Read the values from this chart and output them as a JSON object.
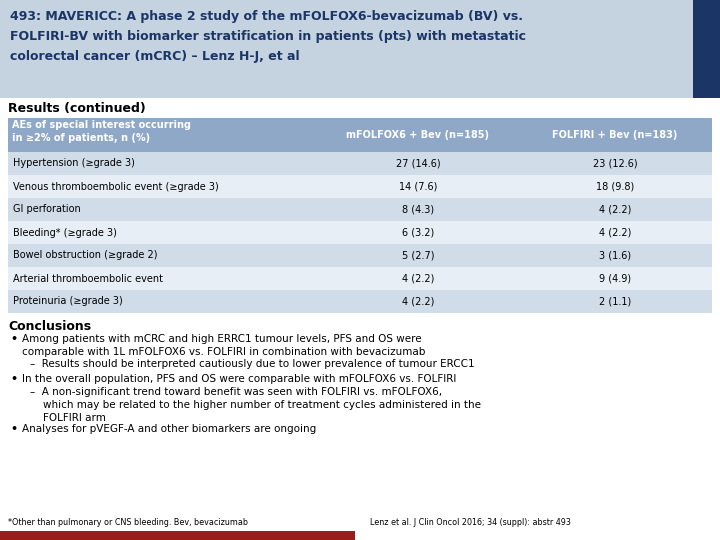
{
  "title_lines": [
    "493: MAVERICC: A phase 2 study of the mFOLFOX6-bevacizumab (BV) vs.",
    "FOLFIRI-BV with biomarker stratification in patients (pts) with metastatic",
    "colorectal cancer (mCRC) – Lenz H-J, et al"
  ],
  "title_bg": "#c5d3e0",
  "title_color": "#1a3566",
  "sidebar_color": "#1a3566",
  "results_title": "Results (continued)",
  "table_header": [
    "AEs of special interest occurring\nin ≥2% of patients, n (%)",
    "mFOLFOX6 + Bev (n=185)",
    "FOLFIRI + Bev (n=183)"
  ],
  "table_header_bg": "#8fa8c8",
  "table_row_bg_odd": "#d0dce8",
  "table_row_bg_even": "#e8eef5",
  "table_rows": [
    [
      "Hypertension (≥grade 3)",
      "27 (14.6)",
      "23 (12.6)"
    ],
    [
      "Venous thromboembolic event (≥grade 3)",
      "14 (7.6)",
      "18 (9.8)"
    ],
    [
      "GI perforation",
      "8 (4.3)",
      "4 (2.2)"
    ],
    [
      "Bleeding* (≥grade 3)",
      "6 (3.2)",
      "4 (2.2)"
    ],
    [
      "Bowel obstruction (≥grade 2)",
      "5 (2.7)",
      "3 (1.6)"
    ],
    [
      "Arterial thromboembolic event",
      "4 (2.2)",
      "9 (4.9)"
    ],
    [
      "Proteinuria (≥grade 3)",
      "4 (2.2)",
      "2 (1.1)"
    ]
  ],
  "conclusions_title": "Conclusions",
  "bullet1_main": "Among patients with mCRC and high ERRC1 tumour levels, PFS and OS were\ncomparable with 1L mFOLFOX6 vs. FOLFIRI in combination with bevacizumab",
  "bullet1_sub": "–  Results should be interpreted cautiously due to lower prevalence of tumour ERCC1",
  "bullet2_main": "In the overall population, PFS and OS were comparable with mFOLFOX6 vs. FOLFIRI",
  "bullet2_sub": "–  A non-significant trend toward benefit was seen with FOLFIRI vs. mFOLFOX6,\n    which may be related to the higher number of treatment cycles administered in the\n    FOLFIRI arm",
  "bullet3_main": "Analyses for pVEGF-A and other biomarkers are ongoing",
  "footnote_left": "*Other than pulmonary or CNS bleeding. Bev, bevacizumab",
  "footnote_right": "Lenz et al. J Clin Oncol 2016; 34 (suppl): abstr 493",
  "footer_color": "#9b1c1c",
  "white_bg": "#ffffff",
  "slide_bg": "#e8e8e8"
}
